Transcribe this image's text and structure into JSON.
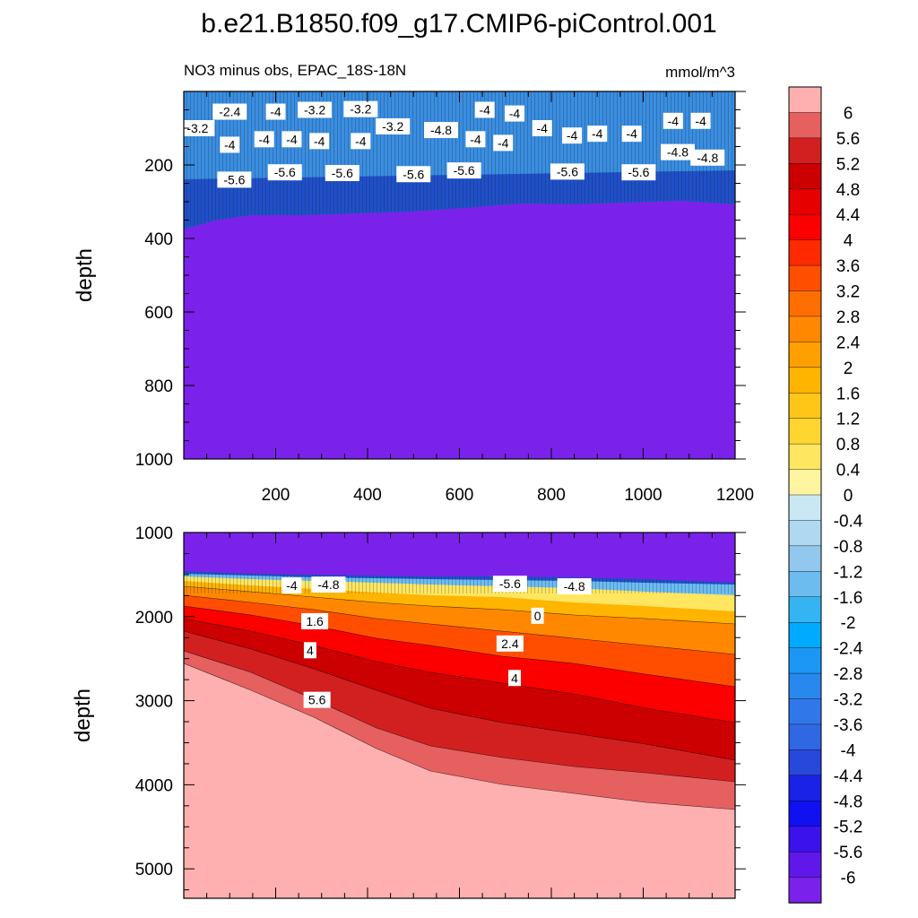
{
  "title": "b.e21.B1850.f09_g17.CMIP6-piControl.001",
  "units": "mmol/m^3",
  "colors": {
    "background_deep_negative": "#7b22ea",
    "background_deep_positive": "#feb0b0"
  },
  "chart_data": [
    {
      "type": "heatmap",
      "name": "upper",
      "subtitle": "NO3 minus obs, EPAC_18S-18N",
      "ylabel": "depth",
      "xlim": [
        0,
        1200
      ],
      "ylim": [
        0,
        1000
      ],
      "y_reversed": true,
      "x_ticks": [
        "200",
        "400",
        "600",
        "800",
        "1000",
        "1200"
      ],
      "y_ticks": [
        "200",
        "400",
        "600",
        "800",
        "1000"
      ],
      "contour_labels": [
        {
          "text": "-3.2",
          "x": 30,
          "y": 100
        },
        {
          "text": "-2.4",
          "x": 100,
          "y": 55
        },
        {
          "text": "-4",
          "x": 200,
          "y": 55
        },
        {
          "text": "-3.2",
          "x": 285,
          "y": 50
        },
        {
          "text": "-3.2",
          "x": 385,
          "y": 48
        },
        {
          "text": "-3.2",
          "x": 455,
          "y": 95
        },
        {
          "text": "-4.8",
          "x": 560,
          "y": 105
        },
        {
          "text": "-4",
          "x": 655,
          "y": 50
        },
        {
          "text": "-4",
          "x": 720,
          "y": 60
        },
        {
          "text": "-4",
          "x": 780,
          "y": 100
        },
        {
          "text": "-4",
          "x": 100,
          "y": 145
        },
        {
          "text": "-4",
          "x": 175,
          "y": 130
        },
        {
          "text": "-4",
          "x": 235,
          "y": 130
        },
        {
          "text": "-4",
          "x": 295,
          "y": 135
        },
        {
          "text": "-4",
          "x": 385,
          "y": 135
        },
        {
          "text": "-4",
          "x": 635,
          "y": 130
        },
        {
          "text": "-4",
          "x": 695,
          "y": 140
        },
        {
          "text": "-4",
          "x": 845,
          "y": 120
        },
        {
          "text": "-4",
          "x": 900,
          "y": 115
        },
        {
          "text": "-4",
          "x": 975,
          "y": 115
        },
        {
          "text": "-4.8",
          "x": 1075,
          "y": 165
        },
        {
          "text": "-4.8",
          "x": 1140,
          "y": 180
        },
        {
          "text": "-4",
          "x": 1065,
          "y": 80
        },
        {
          "text": "-4",
          "x": 1125,
          "y": 80
        },
        {
          "text": "-5.6",
          "x": 110,
          "y": 240
        },
        {
          "text": "-5.6",
          "x": 220,
          "y": 220
        },
        {
          "text": "-5.6",
          "x": 345,
          "y": 222
        },
        {
          "text": "-5.6",
          "x": 500,
          "y": 225
        },
        {
          "text": "-5.6",
          "x": 610,
          "y": 215
        },
        {
          "text": "-5.6",
          "x": 835,
          "y": 218
        },
        {
          "text": "-5.6",
          "x": 990,
          "y": 220
        }
      ]
    },
    {
      "type": "heatmap",
      "name": "lower",
      "ylabel": "depth",
      "xlim": [
        0,
        1200
      ],
      "ylim": [
        1000,
        5350
      ],
      "y_reversed": true,
      "y_ticks": [
        "1000",
        "2000",
        "3000",
        "4000",
        "5000"
      ],
      "contour_labels": [
        {
          "text": "-4",
          "x": 235,
          "y": 1630
        },
        {
          "text": "-4.8",
          "x": 315,
          "y": 1620
        },
        {
          "text": "-5.6",
          "x": 710,
          "y": 1610
        },
        {
          "text": "-4.8",
          "x": 850,
          "y": 1640
        },
        {
          "text": "0",
          "x": 770,
          "y": 1990
        },
        {
          "text": "1.6",
          "x": 285,
          "y": 2055
        },
        {
          "text": "2.4",
          "x": 710,
          "y": 2320
        },
        {
          "text": "4",
          "x": 275,
          "y": 2400
        },
        {
          "text": "4",
          "x": 720,
          "y": 2730
        },
        {
          "text": "5.6",
          "x": 290,
          "y": 2990
        }
      ]
    }
  ],
  "colorbar": {
    "labels": [
      "6",
      "5.6",
      "5.2",
      "4.8",
      "4.4",
      "4",
      "3.6",
      "3.2",
      "2.8",
      "2.4",
      "2",
      "1.6",
      "1.2",
      "0.8",
      "0.4",
      "0",
      "-0.4",
      "-0.8",
      "-1.2",
      "-1.6",
      "-2",
      "-2.4",
      "-2.8",
      "-3.2",
      "-3.6",
      "-4",
      "-4.4",
      "-4.8",
      "-5.2",
      "-5.6",
      "-6"
    ],
    "colors": [
      "#feb0b0",
      "#e66060",
      "#d22020",
      "#cc0000",
      "#e60000",
      "#fc0000",
      "#ff2a00",
      "#ff4e00",
      "#ff6e00",
      "#ff8800",
      "#ffa000",
      "#ffb400",
      "#ffc618",
      "#ffd630",
      "#ffe660",
      "#fff4a0",
      "#cae8f4",
      "#aed9f1",
      "#92c8ee",
      "#6cbcf0",
      "#36b4f2",
      "#00aaff",
      "#1c98f4",
      "#2888ee",
      "#3078ea",
      "#3068e4",
      "#2848dc",
      "#1a22e8",
      "#1010f0",
      "#3c12ec",
      "#6018ea",
      "#7b22ea"
    ]
  }
}
